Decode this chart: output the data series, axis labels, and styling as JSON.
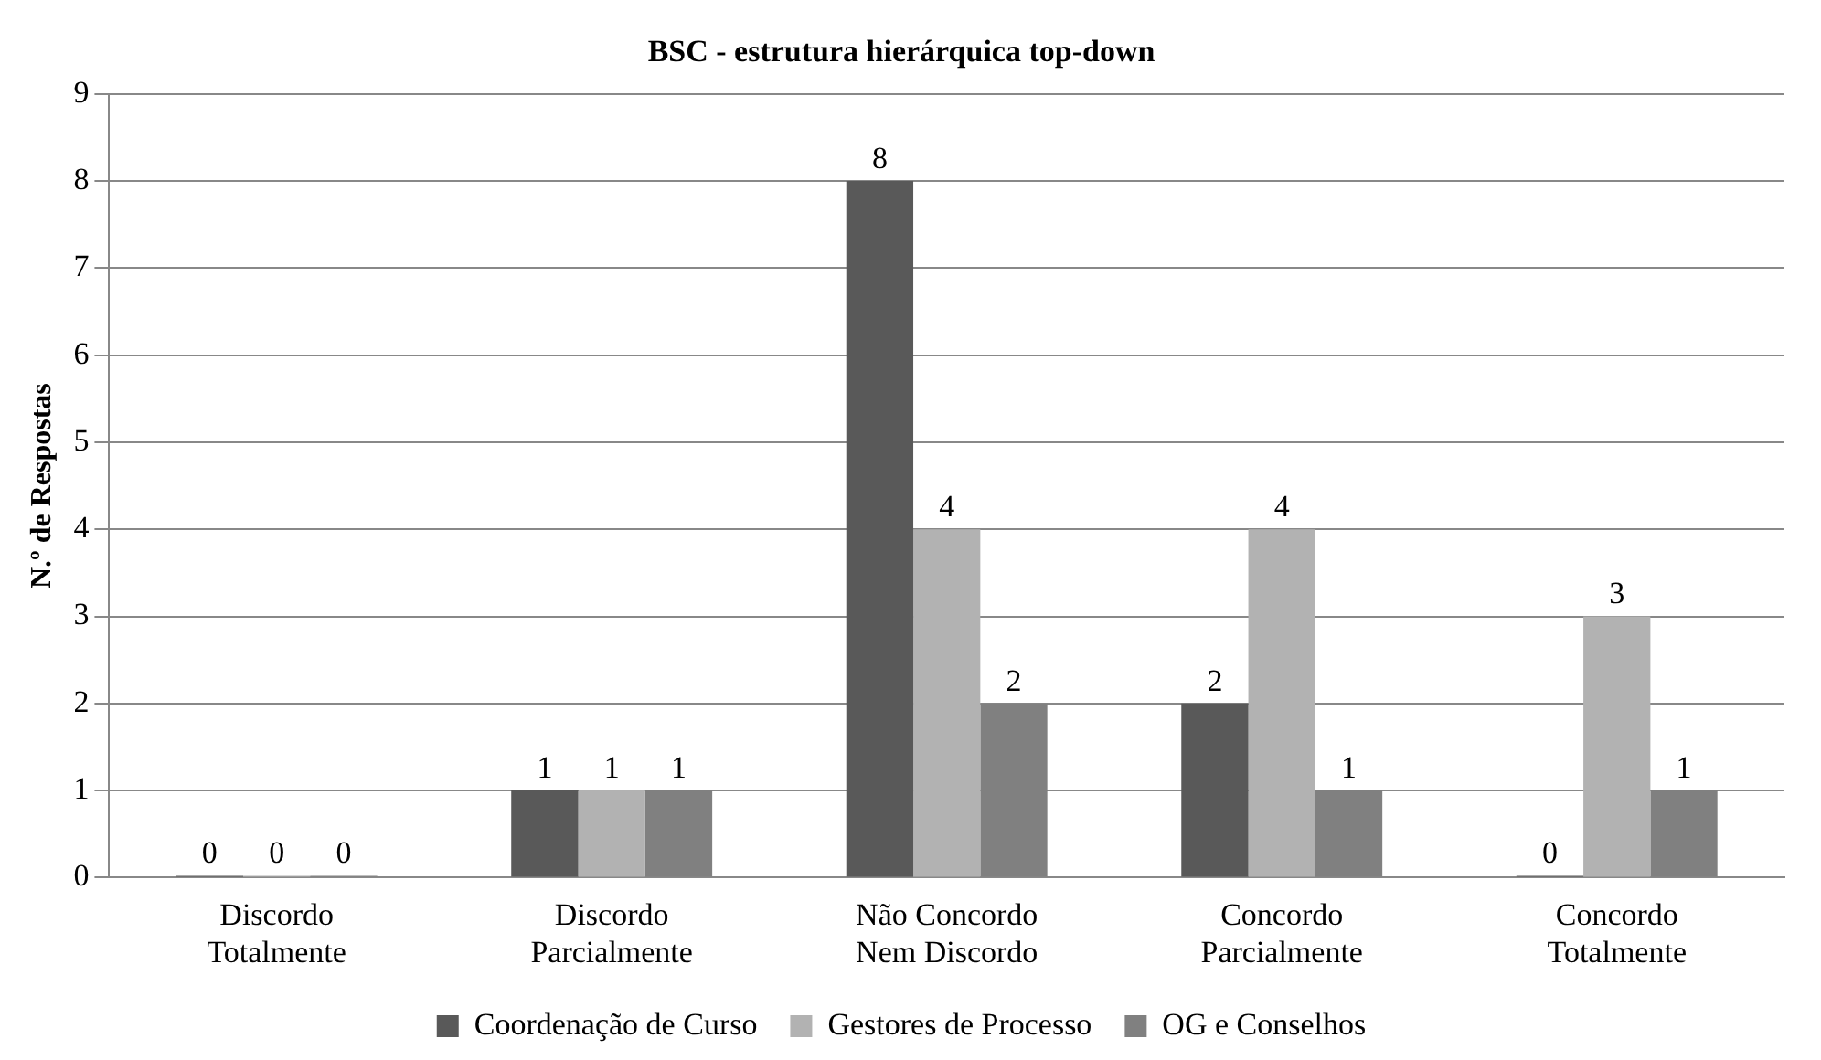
{
  "chart_data": {
    "type": "bar",
    "title": "BSC - estrutura hierárquica top-down",
    "ylabel": "N.º de Respostas",
    "categories": [
      "Discordo Totalmente",
      "Discordo Parcialmente",
      "Não Concordo Nem Discordo",
      "Concordo Parcialmente",
      "Concordo Totalmente"
    ],
    "series": [
      {
        "name": "Coordenação de Curso",
        "color": "#595959",
        "values": [
          0,
          1,
          8,
          2,
          0
        ]
      },
      {
        "name": "Gestores de Processo",
        "color": "#b2b2b2",
        "values": [
          0,
          1,
          4,
          4,
          3
        ]
      },
      {
        "name": "OG e Conselhos",
        "color": "#808080",
        "values": [
          0,
          1,
          2,
          1,
          1
        ]
      }
    ],
    "ylim": [
      0,
      9
    ],
    "yticks": [
      0,
      1,
      2,
      3,
      4,
      5,
      6,
      7,
      8,
      9
    ],
    "grid": "y",
    "legend": "bottom",
    "data_labels": true
  }
}
